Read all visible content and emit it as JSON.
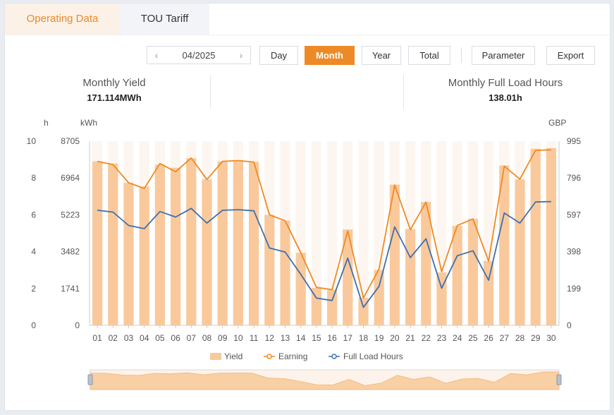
{
  "tabs": [
    {
      "label": "Operating Data"
    },
    {
      "label": "TOU Tariff"
    }
  ],
  "toolbar": {
    "date": "04/2025",
    "prev_icon": "chevron-left-icon",
    "next_icon": "chevron-right-icon",
    "buttons": {
      "day": "Day",
      "month": "Month",
      "year": "Year",
      "total": "Total",
      "parameter": "Parameter",
      "export": "Export"
    },
    "active": "Month"
  },
  "stats": {
    "yield_label": "Monthly Yield",
    "yield_value": "171.114MWh",
    "flh_label": "Monthly Full Load Hours",
    "flh_value": "138.01h"
  },
  "colors": {
    "accent": "#ee8a26",
    "bar": "#f9c99c",
    "bar_bg": "#fdf6f0",
    "earning": "#ef8a23",
    "flh": "#3f6fae"
  },
  "chart_data": {
    "type": "bar",
    "categories": [
      "01",
      "02",
      "03",
      "04",
      "05",
      "06",
      "07",
      "08",
      "09",
      "10",
      "11",
      "12",
      "13",
      "14",
      "15",
      "16",
      "17",
      "18",
      "19",
      "20",
      "21",
      "22",
      "23",
      "24",
      "25",
      "26",
      "27",
      "28",
      "29",
      "30"
    ],
    "axis_units": {
      "left_h": "h",
      "left_kwh": "kWh",
      "right": "GBP"
    },
    "left_h_ticks": [
      "0",
      "2",
      "4",
      "6",
      "8",
      "10"
    ],
    "left_kwh_ticks": [
      "0",
      "1741",
      "3482",
      "5223",
      "6964",
      "8705"
    ],
    "right_ticks": [
      "0",
      "199",
      "398",
      "597",
      "796",
      "995"
    ],
    "ylim_h": [
      0,
      10
    ],
    "ylim_kwh": [
      0,
      8705
    ],
    "ylim_gbp": [
      0,
      995
    ],
    "series": [
      {
        "name": "Yield",
        "type": "bar",
        "axis": "kWh",
        "values": [
          7750,
          7650,
          6730,
          6560,
          7600,
          7450,
          7900,
          6900,
          7750,
          7800,
          7730,
          5220,
          4950,
          3430,
          1770,
          1680,
          4530,
          1300,
          2620,
          6650,
          4550,
          5830,
          2500,
          4700,
          5030,
          3040,
          7560,
          6900,
          8350,
          8380
        ]
      },
      {
        "name": "Earning",
        "type": "line",
        "axis": "GBP",
        "values": [
          886,
          868,
          770,
          740,
          874,
          830,
          904,
          788,
          886,
          890,
          882,
          597,
          565,
          392,
          205,
          193,
          510,
          148,
          305,
          758,
          517,
          666,
          290,
          540,
          575,
          347,
          860,
          790,
          945,
          948
        ]
      },
      {
        "name": "Full Load Hours",
        "type": "line",
        "axis": "h",
        "values": [
          6.25,
          6.15,
          5.42,
          5.25,
          6.18,
          5.88,
          6.35,
          5.55,
          6.25,
          6.28,
          6.22,
          4.2,
          3.98,
          2.77,
          1.48,
          1.35,
          3.65,
          0.98,
          2.12,
          5.35,
          3.68,
          4.7,
          2.02,
          3.78,
          4.05,
          2.45,
          6.1,
          5.55,
          6.7,
          6.72
        ]
      }
    ],
    "grid": false,
    "legend_position": "bottom",
    "navigator": true
  }
}
